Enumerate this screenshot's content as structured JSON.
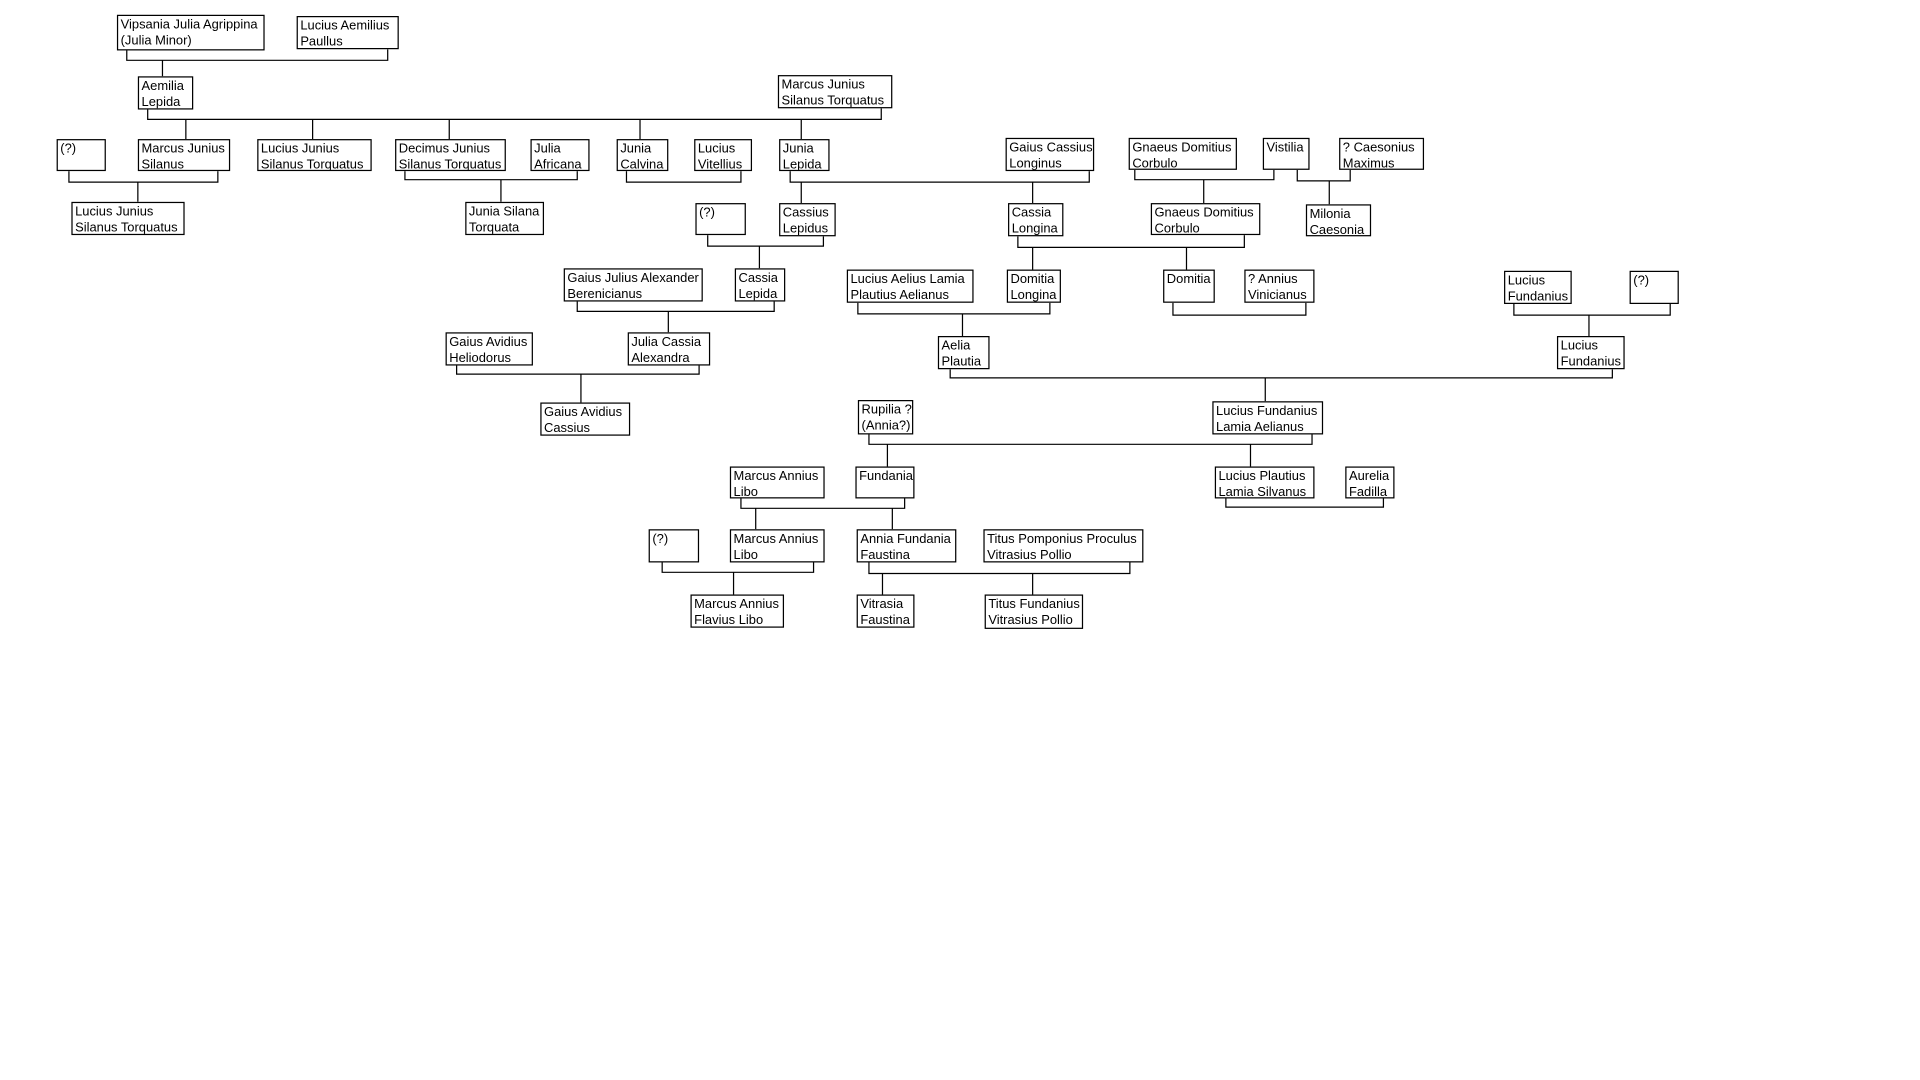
{
  "people": [
    {
      "line1": "Vipsania Julia Agrippina",
      "line2": "(Julia Minor)"
    },
    {
      "line1": "Lucius Aemilius",
      "line2": "Paullus"
    },
    {
      "line1": "Aemilia",
      "line2": "Lepida"
    },
    {
      "line1": "Marcus Junius",
      "line2": "Silanus Torquatus"
    },
    {
      "line1": "(?)",
      "line2": ""
    },
    {
      "line1": "Marcus Junius",
      "line2": "Silanus"
    },
    {
      "line1": "Lucius Junius",
      "line2": "Silanus Torquatus"
    },
    {
      "line1": "Decimus Junius",
      "line2": "Silanus Torquatus"
    },
    {
      "line1": "Julia",
      "line2": "Africana"
    },
    {
      "line1": "Junia",
      "line2": "Calvina"
    },
    {
      "line1": "Lucius",
      "line2": "Vitellius"
    },
    {
      "line1": "Junia",
      "line2": "Lepida"
    },
    {
      "line1": "Gaius Cassius",
      "line2": "Longinus"
    },
    {
      "line1": "Gnaeus Domitius",
      "line2": "Corbulo"
    },
    {
      "line1": "Vistilia",
      "line2": ""
    },
    {
      "line1": "?  Caesonius",
      "line2": "Maximus"
    },
    {
      "line1": "Lucius Junius",
      "line2": "Silanus Torquatus"
    },
    {
      "line1": "Junia Silana",
      "line2": "Torquata"
    },
    {
      "line1": "(?)",
      "line2": ""
    },
    {
      "line1": "Cassius",
      "line2": "Lepidus"
    },
    {
      "line1": "Cassia",
      "line2": "Longina"
    },
    {
      "line1": "Gnaeus Domitius",
      "line2": "Corbulo"
    },
    {
      "line1": "Milonia",
      "line2": "Caesonia"
    },
    {
      "line1": "Gaius Julius Alexander",
      "line2": "Berenicianus"
    },
    {
      "line1": "Cassia",
      "line2": "Lepida"
    },
    {
      "line1": "Lucius Aelius Lamia",
      "line2": "Plautius Aelianus"
    },
    {
      "line1": "Domitia",
      "line2": "Longina"
    },
    {
      "line1": "Domitia",
      "line2": ""
    },
    {
      "line1": "? Annius",
      "line2": "Vinicianus"
    },
    {
      "line1": "Lucius",
      "line2": "Fundanius"
    },
    {
      "line1": "(?)",
      "line2": ""
    },
    {
      "line1": "Gaius Avidius",
      "line2": "Heliodorus"
    },
    {
      "line1": "Julia Cassia",
      "line2": "Alexandra"
    },
    {
      "line1": "Aelia",
      "line2": "Plautia"
    },
    {
      "line1": "Lucius",
      "line2": "Fundanius"
    },
    {
      "line1": "Gaius Avidius",
      "line2": "Cassius"
    },
    {
      "line1": "Rupilia ?",
      "line2": "(Annia?)"
    },
    {
      "line1": "Lucius Fundanius",
      "line2": "Lamia Aelianus"
    },
    {
      "line1": "Marcus Annius",
      "line2": "Libo"
    },
    {
      "line1": "Fundania",
      "line2": ""
    },
    {
      "line1": "Lucius Plautius",
      "line2": "Lamia Silvanus"
    },
    {
      "line1": "Aurelia",
      "line2": "Fadilla"
    },
    {
      "line1": "(?)",
      "line2": ""
    },
    {
      "line1": "Marcus Annius",
      "line2": "Libo"
    },
    {
      "line1": "Annia Fundania",
      "line2": "Faustina"
    },
    {
      "line1": "Titus Pomponius Proculus",
      "line2": "Vitrasius Pollio"
    },
    {
      "line1": "Marcus Annius",
      "line2": "Flavius Libo"
    },
    {
      "line1": "Vitrasia",
      "line2": "Faustina"
    },
    {
      "line1": "Titus Fundanius",
      "line2": "Vitrasius Pollio"
    }
  ],
  "colors": {
    "line": "#000000",
    "box_border": "#000000",
    "background": "#ffffff"
  }
}
